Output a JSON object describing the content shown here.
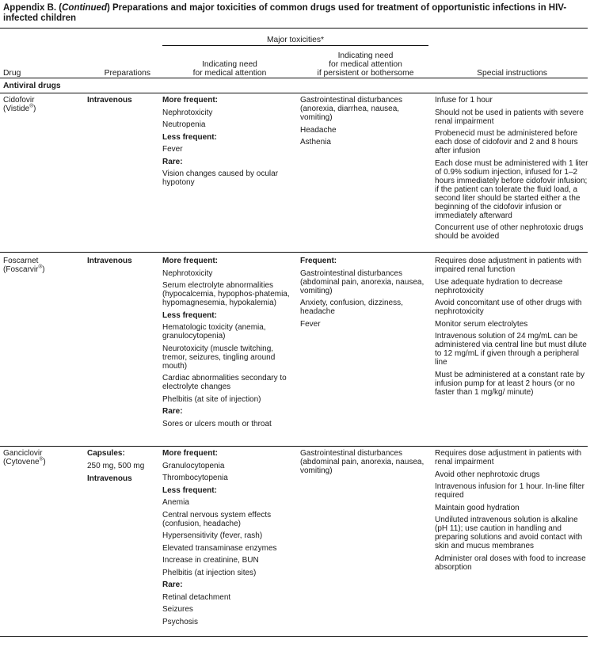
{
  "title": {
    "prefix": "Appendix B. (",
    "continued": "Continued",
    "rest": ") Preparations and major toxicities of common drugs used for treatment of opportunistic infections in HIV-infected children"
  },
  "headers": {
    "group": "Major toxicities*",
    "drug": "Drug",
    "preparations": "Preparations",
    "medical_attention": [
      "Indicating need",
      "for medical attention"
    ],
    "persistent": [
      "Indicating need",
      "for medical attention",
      "if persistent or bothersome"
    ],
    "special": "Special instructions"
  },
  "section": "Antiviral drugs",
  "rows": [
    {
      "drug": "Cidofovir",
      "brand": "Vistide",
      "reg": "®",
      "preparations": [
        {
          "text": "Intravenous",
          "bold": true
        }
      ],
      "medical": [
        {
          "text": "More frequent:",
          "bold": true
        },
        {
          "text": "Nephrotoxicity"
        },
        {
          "text": "Neutropenia"
        },
        {
          "text": "Less frequent:",
          "bold": true
        },
        {
          "text": "Fever"
        },
        {
          "text": "Rare:",
          "bold": true
        },
        {
          "text": "Vision changes caused by ocular hypotony"
        }
      ],
      "persistent": [
        {
          "text": "Gastrointestinal disturbances (anorexia, diarrhea, nausea, vomiting)"
        },
        {
          "text": "Headache"
        },
        {
          "text": "Asthenia"
        }
      ],
      "special": [
        {
          "text": "Infuse for 1 hour"
        },
        {
          "text": "Should not be used in patients with severe renal impairment"
        },
        {
          "text": "Probenecid must be administered before each dose of cidofovir and 2 and 8 hours after infusion"
        },
        {
          "text": "Each dose must be administered with 1 liter of 0.9% sodium injection, infused for 1–2 hours immediately before cidofovir infusion; if the patient can tolerate the fluid load, a second liter should be started either a the beginning of the cidofovir infusion or immediately afterward"
        },
        {
          "text": "Concurrent use of other nephrotoxic drugs should be avoided"
        }
      ]
    },
    {
      "drug": "Foscarnet",
      "brand": "Foscarvir",
      "reg": "®",
      "preparations": [
        {
          "text": "Intravenous",
          "bold": true
        }
      ],
      "medical": [
        {
          "text": "More frequent:",
          "bold": true
        },
        {
          "text": "Nephrotoxicity"
        },
        {
          "text": "Serum electrolyte abnormalities (hypocalcemia, hypophos-phatemia, hypomagnesemia, hypokalemia)"
        },
        {
          "text": "Less frequent:",
          "bold": true
        },
        {
          "text": "Hematologic toxicity (anemia, granulocytopenia)"
        },
        {
          "text": "Neurotoxicity (muscle twitching, tremor, seizures, tingling around mouth)"
        },
        {
          "text": "Cardiac abnormalities secondary to electrolyte changes"
        },
        {
          "text": "Phelbitis (at site of injection)"
        },
        {
          "text": "Rare:",
          "bold": true
        },
        {
          "text": "Sores or ulcers mouth or throat"
        }
      ],
      "persistent": [
        {
          "text": "Frequent:",
          "bold": true
        },
        {
          "text": "Gastrointestinal disturbances (abdominal pain, anorexia, nausea, vomiting)"
        },
        {
          "text": "Anxiety, confusion, dizziness, headache"
        },
        {
          "text": "Fever"
        }
      ],
      "special": [
        {
          "text": "Requires dose adjustment in patients with impaired renal function"
        },
        {
          "text": "Use adequate hydration to decrease nephrotoxicity"
        },
        {
          "text": "Avoid concomitant use of other drugs with nephrotoxicity"
        },
        {
          "text": "Monitor serum electrolytes"
        },
        {
          "text": "Intravenous solution of 24 mg/mL can be administered via central line but must dilute to 12 mg/mL if given through a peripheral line"
        },
        {
          "text": "Must be administered at a constant rate by infusion pump for at least 2 hours (or no faster than 1 mg/kg/ minute)"
        }
      ]
    },
    {
      "drug": "Ganciclovir",
      "brand": "Cytovene",
      "reg": "®",
      "preparations": [
        {
          "text": "Capsules:",
          "bold": true
        },
        {
          "text": "250 mg, 500 mg"
        },
        {
          "text": "Intravenous",
          "bold": true
        }
      ],
      "medical": [
        {
          "text": "More frequent:",
          "bold": true
        },
        {
          "text": "Granulocytopenia"
        },
        {
          "text": "Thrombocytopenia"
        },
        {
          "text": "Less frequent:",
          "bold": true
        },
        {
          "text": "Anemia"
        },
        {
          "text": "Central nervous system effects (confusion, headache)"
        },
        {
          "text": "Hypersensitivity (fever, rash)"
        },
        {
          "text": "Elevated transaminase enzymes"
        },
        {
          "text": "Increase in creatinine, BUN"
        },
        {
          "text": "Phelbitis (at injection sites)"
        },
        {
          "text": "Rare:",
          "bold": true
        },
        {
          "text": "Retinal detachment"
        },
        {
          "text": "Seizures"
        },
        {
          "text": "Psychosis"
        }
      ],
      "persistent": [
        {
          "text": "Gastrointestinal disturbances (abdominal pain, anorexia, nausea, vomiting)"
        }
      ],
      "special": [
        {
          "text": "Requires dose adjustment in patients with renal impairment"
        },
        {
          "text": "Avoid other nephrotoxic drugs"
        },
        {
          "text": "Intravenous infusion for 1 hour. In-line filter required"
        },
        {
          "text": "Maintain good hydration"
        },
        {
          "text": "Undiluted intravenous solution is alkaline (pH 11); use caution in handling and preparing solutions and avoid contact with skin and mucus membranes"
        },
        {
          "text": "Administer oral doses with food to increase absorption"
        }
      ]
    }
  ]
}
